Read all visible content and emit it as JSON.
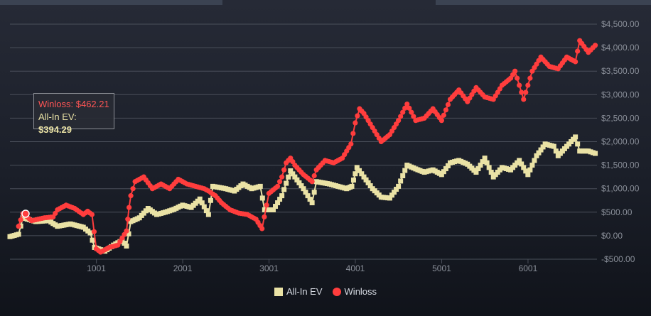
{
  "colors": {
    "allin_ev": "#eae2a5",
    "winloss": "#ff3d3d",
    "grid": "#4a4f5a",
    "axis_text": "#8a8f99"
  },
  "legend": {
    "allin_ev_label": "All-In EV",
    "winloss_label": "Winloss"
  },
  "tooltip": {
    "winloss_label": "Winloss: ",
    "winloss_value": "$462.21",
    "ev_label": "All-In EV: ",
    "ev_value": "$394.29"
  },
  "chart_data": {
    "type": "line",
    "xlim": [
      0,
      6800
    ],
    "ylim": [
      -500,
      4500
    ],
    "x_ticks": [
      1001,
      2001,
      3001,
      4001,
      5001,
      6001
    ],
    "y_ticks": [
      {
        "value": -500,
        "label": "-$500.00"
      },
      {
        "value": 0,
        "label": "$0.00"
      },
      {
        "value": 500,
        "label": "$500.00"
      },
      {
        "value": 1000,
        "label": "$1,000.00"
      },
      {
        "value": 1500,
        "label": "$1,500.00"
      },
      {
        "value": 2000,
        "label": "$2,000.00"
      },
      {
        "value": 2500,
        "label": "$2,500.00"
      },
      {
        "value": 3000,
        "label": "$3,000.00"
      },
      {
        "value": 3500,
        "label": "$3,500.00"
      },
      {
        "value": 4000,
        "label": "$4,000.00"
      },
      {
        "value": 4500,
        "label": "$4,500.00"
      }
    ],
    "series": [
      {
        "name": "All-In EV",
        "marker": "square",
        "color": "#eae2a5",
        "points": [
          [
            0,
            -20
          ],
          [
            100,
            30
          ],
          [
            150,
            380
          ],
          [
            300,
            300
          ],
          [
            450,
            320
          ],
          [
            550,
            200
          ],
          [
            700,
            250
          ],
          [
            850,
            180
          ],
          [
            930,
            60
          ],
          [
            980,
            -250
          ],
          [
            1100,
            -330
          ],
          [
            1200,
            -200
          ],
          [
            1300,
            -100
          ],
          [
            1350,
            -220
          ],
          [
            1400,
            300
          ],
          [
            1500,
            380
          ],
          [
            1600,
            580
          ],
          [
            1700,
            450
          ],
          [
            1800,
            500
          ],
          [
            1900,
            560
          ],
          [
            2000,
            650
          ],
          [
            2100,
            600
          ],
          [
            2200,
            780
          ],
          [
            2300,
            450
          ],
          [
            2350,
            1050
          ],
          [
            2500,
            1000
          ],
          [
            2600,
            950
          ],
          [
            2700,
            1100
          ],
          [
            2800,
            1000
          ],
          [
            2900,
            1050
          ],
          [
            2950,
            550
          ],
          [
            3050,
            550
          ],
          [
            3150,
            850
          ],
          [
            3250,
            1380
          ],
          [
            3300,
            1250
          ],
          [
            3400,
            1000
          ],
          [
            3450,
            850
          ],
          [
            3500,
            700
          ],
          [
            3550,
            1150
          ],
          [
            3700,
            1100
          ],
          [
            3800,
            1050
          ],
          [
            3900,
            1000
          ],
          [
            3960,
            1050
          ],
          [
            4020,
            1450
          ],
          [
            4100,
            1250
          ],
          [
            4200,
            1000
          ],
          [
            4300,
            820
          ],
          [
            4400,
            800
          ],
          [
            4500,
            1050
          ],
          [
            4600,
            1500
          ],
          [
            4700,
            1420
          ],
          [
            4800,
            1350
          ],
          [
            4900,
            1400
          ],
          [
            5000,
            1300
          ],
          [
            5100,
            1550
          ],
          [
            5200,
            1600
          ],
          [
            5300,
            1520
          ],
          [
            5400,
            1350
          ],
          [
            5500,
            1650
          ],
          [
            5600,
            1250
          ],
          [
            5700,
            1450
          ],
          [
            5800,
            1400
          ],
          [
            5900,
            1600
          ],
          [
            6000,
            1300
          ],
          [
            6100,
            1700
          ],
          [
            6200,
            1950
          ],
          [
            6300,
            1900
          ],
          [
            6350,
            1700
          ],
          [
            6450,
            1900
          ],
          [
            6550,
            2100
          ],
          [
            6600,
            1800
          ],
          [
            6700,
            1800
          ],
          [
            6780,
            1750
          ]
        ]
      },
      {
        "name": "Winloss",
        "marker": "circle",
        "color": "#ff3d3d",
        "points": [
          [
            100,
            200
          ],
          [
            150,
            470
          ],
          [
            250,
            320
          ],
          [
            400,
            380
          ],
          [
            500,
            400
          ],
          [
            550,
            550
          ],
          [
            650,
            650
          ],
          [
            750,
            580
          ],
          [
            850,
            450
          ],
          [
            900,
            520
          ],
          [
            950,
            450
          ],
          [
            1000,
            -280
          ],
          [
            1050,
            -350
          ],
          [
            1150,
            -250
          ],
          [
            1250,
            -200
          ],
          [
            1350,
            100
          ],
          [
            1380,
            600
          ],
          [
            1400,
            850
          ],
          [
            1450,
            1150
          ],
          [
            1550,
            1250
          ],
          [
            1650,
            1000
          ],
          [
            1750,
            1100
          ],
          [
            1850,
            1000
          ],
          [
            1950,
            1200
          ],
          [
            2050,
            1100
          ],
          [
            2150,
            1050
          ],
          [
            2250,
            1000
          ],
          [
            2300,
            950
          ],
          [
            2380,
            850
          ],
          [
            2450,
            700
          ],
          [
            2550,
            550
          ],
          [
            2650,
            480
          ],
          [
            2750,
            450
          ],
          [
            2850,
            350
          ],
          [
            2920,
            150
          ],
          [
            3000,
            900
          ],
          [
            3100,
            1050
          ],
          [
            3150,
            1250
          ],
          [
            3200,
            1550
          ],
          [
            3250,
            1650
          ],
          [
            3300,
            1500
          ],
          [
            3400,
            1300
          ],
          [
            3500,
            1150
          ],
          [
            3550,
            1400
          ],
          [
            3650,
            1600
          ],
          [
            3750,
            1550
          ],
          [
            3850,
            1650
          ],
          [
            3950,
            1950
          ],
          [
            4000,
            2400
          ],
          [
            4050,
            2700
          ],
          [
            4100,
            2600
          ],
          [
            4200,
            2300
          ],
          [
            4300,
            2000
          ],
          [
            4400,
            2150
          ],
          [
            4500,
            2450
          ],
          [
            4600,
            2800
          ],
          [
            4700,
            2450
          ],
          [
            4800,
            2500
          ],
          [
            4900,
            2700
          ],
          [
            5000,
            2450
          ],
          [
            5100,
            2900
          ],
          [
            5200,
            3100
          ],
          [
            5300,
            2850
          ],
          [
            5400,
            3150
          ],
          [
            5500,
            2950
          ],
          [
            5600,
            2900
          ],
          [
            5700,
            3200
          ],
          [
            5800,
            3350
          ],
          [
            5850,
            3500
          ],
          [
            5950,
            2900
          ],
          [
            6050,
            3500
          ],
          [
            6150,
            3800
          ],
          [
            6250,
            3600
          ],
          [
            6350,
            3550
          ],
          [
            6450,
            3800
          ],
          [
            6550,
            3700
          ],
          [
            6600,
            4150
          ],
          [
            6700,
            3900
          ],
          [
            6780,
            4050
          ]
        ]
      }
    ]
  }
}
